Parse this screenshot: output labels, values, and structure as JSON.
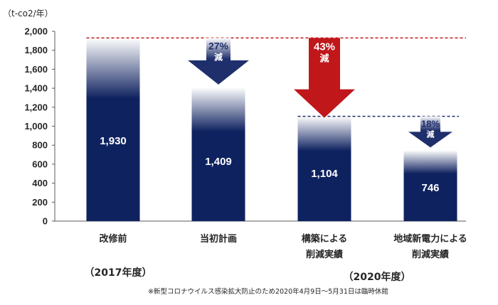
{
  "chart_data": {
    "type": "bar",
    "unit_label": "（t-co2/年）",
    "y_ticks": [
      "0",
      "200",
      "400",
      "600",
      "800",
      "1,000",
      "1,200",
      "1,400",
      "1,600",
      "1,800",
      "2,000"
    ],
    "ylim": [
      0,
      2000
    ],
    "grid": false,
    "categories": [
      {
        "lines": [
          "改修前",
          ""
        ]
      },
      {
        "lines": [
          "当初計画",
          ""
        ]
      },
      {
        "lines": [
          "構築による",
          "削減実績"
        ]
      },
      {
        "lines": [
          "地域新電力による",
          "削減実績"
        ]
      }
    ],
    "values": [
      1930,
      1409,
      1104,
      746
    ],
    "value_labels": [
      "1,930",
      "1,409",
      "1,104",
      "746"
    ],
    "reductions": [
      {
        "pct": "27%",
        "kanji": "減",
        "color": "#1f2f6b"
      },
      {
        "pct": "43%",
        "kanji": "減",
        "color": "#c0171b"
      },
      {
        "pct": "18%",
        "kanji": "減",
        "color": "#1f2f6b"
      }
    ],
    "periods": [
      "（2017年度）",
      "（2020年度）"
    ],
    "note": "※新型コロナウイルス感染拡大防止のため2020年4月9日～5月31日は臨時休館",
    "colors": {
      "bar": "#0f2260",
      "ref_line_red": "#c0171b",
      "ref_line_navy": "#1f2f6b"
    }
  }
}
